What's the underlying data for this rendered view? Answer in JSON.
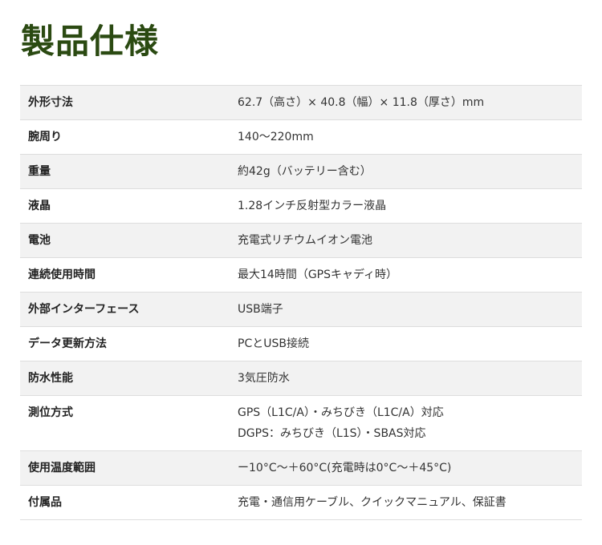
{
  "title": "製品仕様",
  "rows": [
    {
      "label": "外形寸法",
      "value": [
        "62.7（高さ）× 40.8（幅）× 11.8（厚さ）mm"
      ]
    },
    {
      "label": "腕周り",
      "value": [
        "140〜220mm"
      ]
    },
    {
      "label": "重量",
      "value": [
        "約42g（バッテリー含む）"
      ]
    },
    {
      "label": "液晶",
      "value": [
        "1.28インチ反射型カラー液晶"
      ]
    },
    {
      "label": "電池",
      "value": [
        "充電式リチウムイオン電池"
      ]
    },
    {
      "label": "連続使用時間",
      "value": [
        "最大14時間（GPSキャディ時）"
      ]
    },
    {
      "label": "外部インターフェース",
      "value": [
        "USB端子"
      ]
    },
    {
      "label": "データ更新方法",
      "value": [
        "PCとUSB接続"
      ]
    },
    {
      "label": "防水性能",
      "value": [
        "3気圧防水"
      ]
    },
    {
      "label": "測位方式",
      "value": [
        "GPS（L1C/A）・みちびき（L1C/A）対応",
        "DGPS：みちびき（L1S）・SBAS対応"
      ]
    },
    {
      "label": "使用温度範囲",
      "value": [
        "ー10°C〜＋60°C(充電時は0°C〜＋45°C)"
      ]
    },
    {
      "label": "付属品",
      "value": [
        "充電・通信用ケーブル、クイックマニュアル、保証書"
      ]
    }
  ]
}
